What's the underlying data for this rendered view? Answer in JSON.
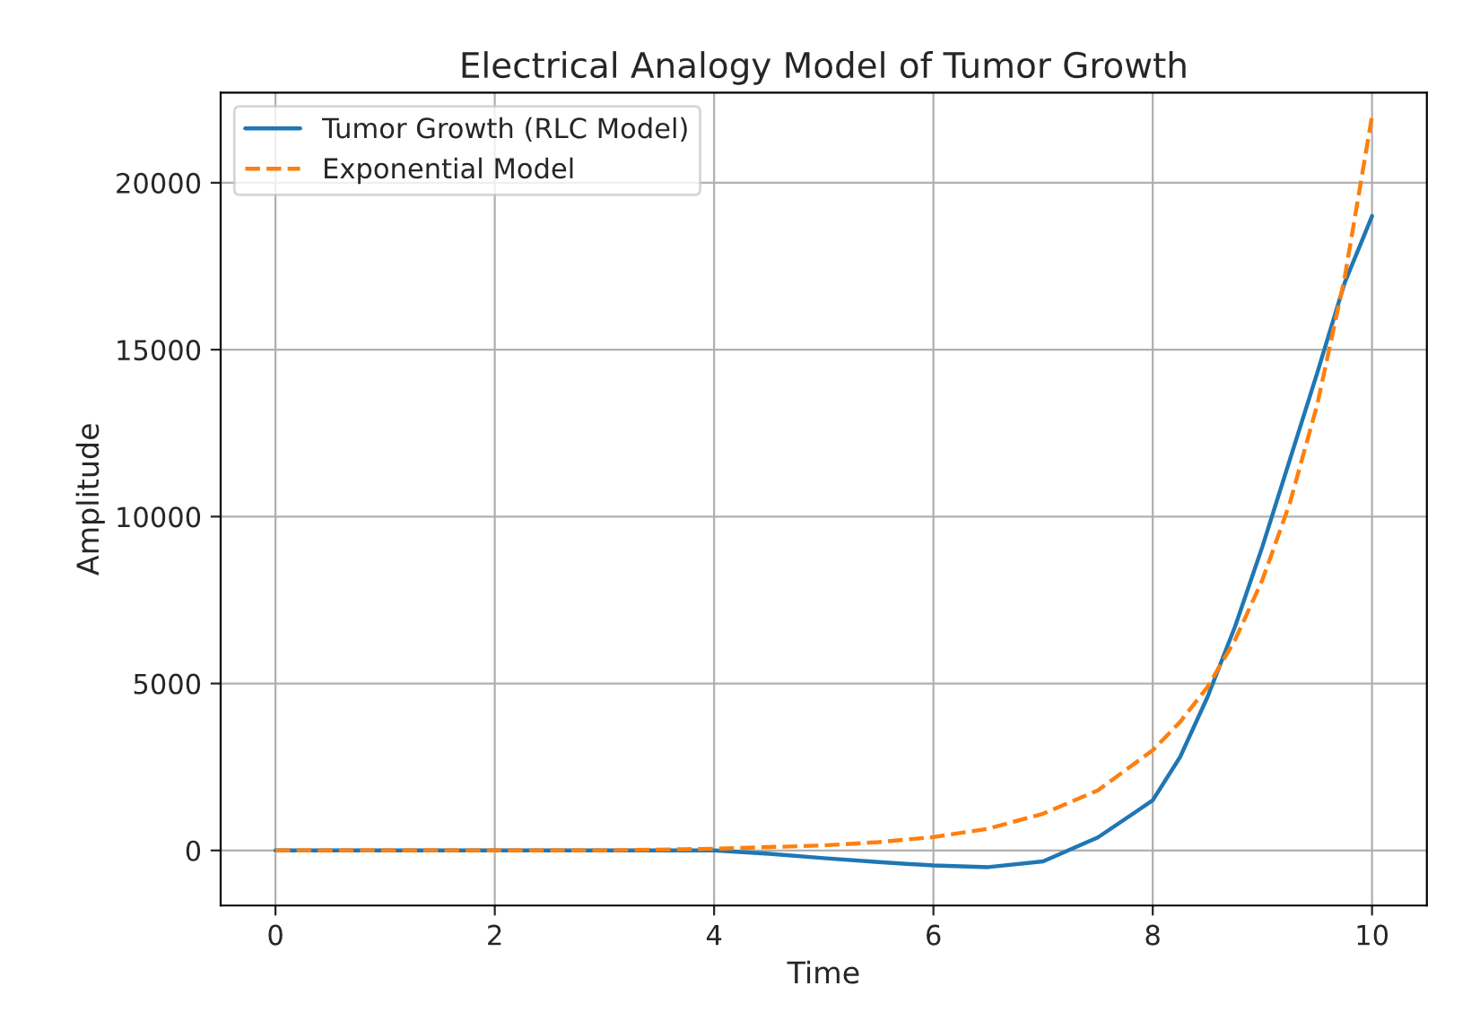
{
  "chart_data": {
    "type": "line",
    "title": "Electrical Analogy Model of Tumor Growth",
    "xlabel": "Time",
    "ylabel": "Amplitude",
    "xlim": [
      -0.5,
      10.5
    ],
    "ylim": [
      -1650,
      22700
    ],
    "xticks": [
      0,
      2,
      4,
      6,
      8,
      10
    ],
    "yticks": [
      0,
      5000,
      10000,
      15000,
      20000
    ],
    "grid": true,
    "legend": "top left",
    "series": [
      {
        "name": "Tumor Growth (RLC Model)",
        "color": "#1f77b4",
        "line_style": "solid",
        "x": [
          0,
          1,
          2,
          3,
          4,
          4.5,
          5,
          5.5,
          6,
          6.5,
          7,
          7.5,
          8,
          8.25,
          8.5,
          8.75,
          9,
          9.25,
          9.5,
          9.75,
          10
        ],
        "values": [
          0,
          0,
          0,
          0,
          0,
          -100,
          -230,
          -350,
          -450,
          -500,
          -330,
          390,
          1500,
          2800,
          4600,
          6700,
          9100,
          11700,
          14300,
          17000,
          19000
        ]
      },
      {
        "name": "Exponential Model",
        "color": "#ff7f0e",
        "line_style": "dashed",
        "x": [
          0,
          1,
          2,
          3,
          4,
          4.5,
          5,
          5.5,
          6,
          6.5,
          7,
          7.5,
          8,
          8.25,
          8.5,
          8.75,
          9,
          9.25,
          9.5,
          9.75,
          10
        ],
        "values": [
          0,
          0,
          0,
          0,
          50,
          100,
          150,
          250,
          400,
          650,
          1100,
          1800,
          3000,
          3850,
          4900,
          6300,
          8100,
          10400,
          13350,
          17150,
          22000
        ]
      }
    ]
  }
}
